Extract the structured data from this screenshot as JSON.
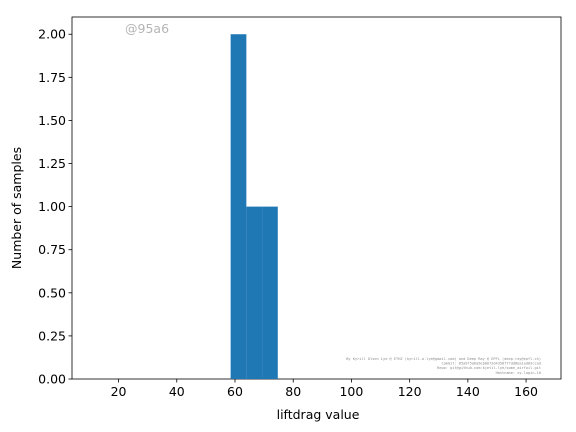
{
  "chart_data": {
    "type": "bar",
    "subtype": "histogram",
    "xlabel": "liftdrag value",
    "ylabel": "Number of samples",
    "xlim": [
      4,
      172
    ],
    "ylim": [
      0,
      2.1
    ],
    "xticks": [
      20,
      40,
      60,
      80,
      100,
      120,
      140,
      160
    ],
    "yticks": [
      0,
      0.25,
      0.5,
      0.75,
      1.0,
      1.25,
      1.5,
      1.75,
      2.0
    ],
    "ytick_labels": [
      "0.00",
      "0.25",
      "0.50",
      "0.75",
      "1.00",
      "1.25",
      "1.50",
      "1.75",
      "2.00"
    ],
    "bins": [
      {
        "x0": 58.5,
        "x1": 63.9,
        "count": 2
      },
      {
        "x0": 63.9,
        "x1": 69.3,
        "count": 1
      },
      {
        "x0": 69.3,
        "x1": 74.7,
        "count": 1
      }
    ],
    "bar_color": "#1f77b4",
    "grid": false
  },
  "watermark": "@95a6",
  "credits": [
    "By Kyrill Olsen Lye @ ETHZ (kyrill.o.lye@gmail.com) and Deep Ray @ EPFL (deep.ray@epfl.ch)",
    "Commit: 05a975a6a9eb0072d4358777dd8ba1ad83ccad",
    "Repo: git@github.com:kjetil-lye/some_airfoil.git",
    "Hostname: xy-login-10"
  ]
}
